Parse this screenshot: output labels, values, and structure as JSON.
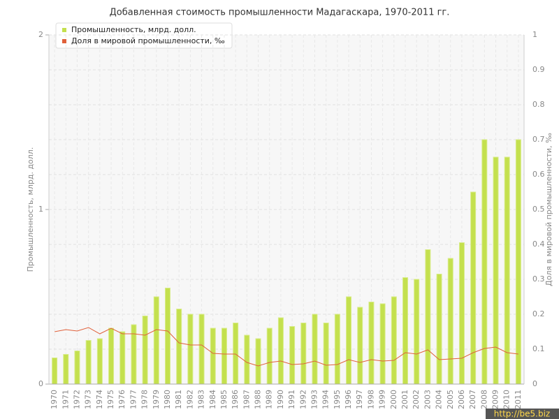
{
  "chart_data": {
    "type": "bar",
    "title": "Добавленная стоимость промышленности Мадагаскара, 1970-2011 гг.",
    "y_label": "Промышленность, млрд. долл.",
    "y2_label": "Доля в мировой промышленности, ‰",
    "watermark": "http://be5.biz",
    "categories": [
      "1970",
      "1971",
      "1972",
      "1973",
      "1974",
      "1975",
      "1976",
      "1977",
      "1978",
      "1979",
      "1980",
      "1981",
      "1982",
      "1983",
      "1984",
      "1985",
      "1986",
      "1987",
      "1988",
      "1989",
      "1990",
      "1991",
      "1992",
      "1993",
      "1994",
      "1995",
      "1996",
      "1997",
      "1998",
      "1999",
      "2000",
      "2001",
      "2002",
      "2003",
      "2004",
      "2005",
      "2006",
      "2007",
      "2008",
      "2009",
      "2010",
      "2011"
    ],
    "series": [
      {
        "name": "Промышленность, млрд. долл.",
        "type": "bar",
        "color": "#c4e04e",
        "values": [
          0.15,
          0.17,
          0.19,
          0.25,
          0.26,
          0.32,
          0.3,
          0.34,
          0.39,
          0.5,
          0.55,
          0.43,
          0.4,
          0.4,
          0.32,
          0.32,
          0.35,
          0.28,
          0.26,
          0.32,
          0.38,
          0.33,
          0.35,
          0.4,
          0.35,
          0.4,
          0.5,
          0.44,
          0.47,
          0.46,
          0.5,
          0.61,
          0.6,
          0.77,
          0.63,
          0.72,
          0.81,
          1.1,
          1.4,
          1.3,
          1.3,
          1.4
        ]
      },
      {
        "name": "Доля в мировой промышленности, ‰",
        "type": "line",
        "axis": "y2",
        "color": "#e0603a",
        "values": [
          0.15,
          0.156,
          0.152,
          0.162,
          0.144,
          0.16,
          0.144,
          0.144,
          0.14,
          0.156,
          0.152,
          0.118,
          0.112,
          0.112,
          0.088,
          0.086,
          0.086,
          0.062,
          0.052,
          0.062,
          0.066,
          0.056,
          0.058,
          0.066,
          0.054,
          0.056,
          0.07,
          0.062,
          0.07,
          0.066,
          0.068,
          0.09,
          0.086,
          0.098,
          0.07,
          0.072,
          0.074,
          0.09,
          0.102,
          0.106,
          0.09,
          0.086
        ]
      }
    ],
    "ylim": [
      0,
      2
    ],
    "yticks": [
      0,
      1,
      2
    ],
    "y2lim": [
      0,
      1
    ],
    "y2ticks": [
      0,
      0.1,
      0.2,
      0.3,
      0.4,
      0.5,
      0.6,
      0.7,
      0.8,
      0.9,
      1
    ],
    "grid": true
  }
}
